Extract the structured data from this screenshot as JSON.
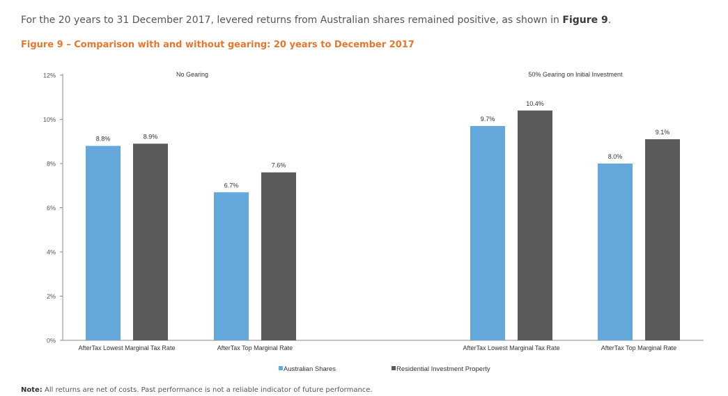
{
  "intro": {
    "text_before": "For the 20 years to 31 December 2017, levered returns from Australian shares remained positive, as shown in ",
    "figure_ref": "Figure 9",
    "text_after": "."
  },
  "figure_title": "Figure 9 – Comparison with and without gearing: 20 years to December 2017",
  "note": {
    "label": "Note:",
    "text": " All returns are net of costs. Past performance is not a reliable indicator of future performance."
  },
  "chart_data": {
    "type": "bar",
    "ylim": [
      0,
      12
    ],
    "yticks": [
      "0%",
      "2%",
      "4%",
      "6%",
      "8%",
      "10%",
      "12%"
    ],
    "legend_placement": "bottom",
    "grid": false,
    "panels": [
      {
        "label": "No Gearing",
        "categories": [
          "AfterTax Lowest Marginal Tax Rate",
          "AfterTax Top Marginal Rate"
        ]
      },
      {
        "label": "50% Gearing on Initial Investment",
        "categories": [
          "AfterTax Lowest Marginal Tax Rate",
          "AfterTax Top Marginal Rate"
        ]
      }
    ],
    "series": [
      {
        "name": "Australian Shares",
        "color": "#64a8dc",
        "values": [
          8.8,
          6.7,
          9.7,
          8.0
        ],
        "labels": [
          "8.8%",
          "6.7%",
          "9.7%",
          "8.0%"
        ]
      },
      {
        "name": "Residential Investment Property",
        "color": "#5a5a5a",
        "values": [
          8.9,
          7.6,
          10.4,
          9.1
        ],
        "labels": [
          "8.9%",
          "7.6%",
          "10.4%",
          "9.1%"
        ]
      }
    ]
  }
}
